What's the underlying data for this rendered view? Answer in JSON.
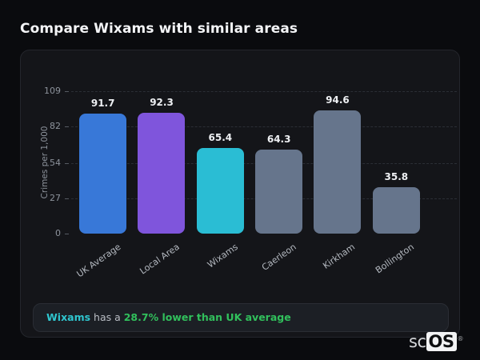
{
  "title": "Compare Wixams with similar areas",
  "chart_data": {
    "type": "bar",
    "title": "Compare Wixams with similar areas",
    "categories": [
      "UK Average",
      "Local Area",
      "Wixams",
      "Caerleon",
      "Kirkham",
      "Bollington"
    ],
    "values": [
      91.7,
      92.3,
      65.4,
      64.3,
      94.6,
      35.8
    ],
    "value_labels": [
      "91.7",
      "92.3",
      "65.4",
      "64.3",
      "94.6",
      "35.8"
    ],
    "bar_colors": [
      "#3878d8",
      "#7f55dc",
      "#2abdd4",
      "#66758c",
      "#66758c",
      "#66758c"
    ],
    "xlabel": "",
    "ylabel": "Crimes per 1,000",
    "ylim": [
      0,
      109
    ],
    "yticks": [
      0,
      27,
      54,
      82,
      109
    ],
    "grid": "horizontal-dashed",
    "legend": "none"
  },
  "note": {
    "area": "Wixams",
    "mid": " has a ",
    "highlight": "28.7% lower than UK average",
    "area_color": "#2fc6cf",
    "highlight_color": "#31c05c"
  },
  "logo": {
    "prefix": "sc",
    "suffix": "OS",
    "registered": "®"
  }
}
